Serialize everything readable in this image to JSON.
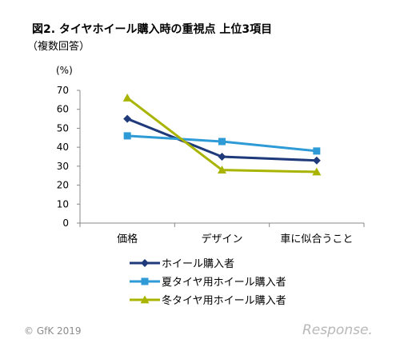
{
  "chart_data": {
    "type": "line",
    "title": "図2. タイヤホイール購入時の重視点 上位3項目",
    "subtitle": "（複数回答）",
    "unit": "(%)",
    "categories": [
      "価格",
      "デザイン",
      "車に似合うこと"
    ],
    "ylim": [
      0,
      70
    ],
    "yticks": [
      0,
      10,
      20,
      30,
      40,
      50,
      60,
      70
    ],
    "grid": false,
    "legend_position": "bottom-center",
    "series": [
      {
        "name": "ホイール購入者",
        "values": [
          55,
          35,
          33
        ],
        "color": "#1f3a7a",
        "marker": "diamond"
      },
      {
        "name": "夏タイヤ用ホイール購入者",
        "values": [
          46,
          43,
          38
        ],
        "color": "#2e9ad6",
        "marker": "square"
      },
      {
        "name": "冬タイヤ用ホイール購入者",
        "values": [
          66,
          28,
          27
        ],
        "color": "#a8b400",
        "marker": "triangle"
      }
    ]
  },
  "footer": {
    "copyright": "© GfK 2019",
    "watermark": "Response."
  }
}
